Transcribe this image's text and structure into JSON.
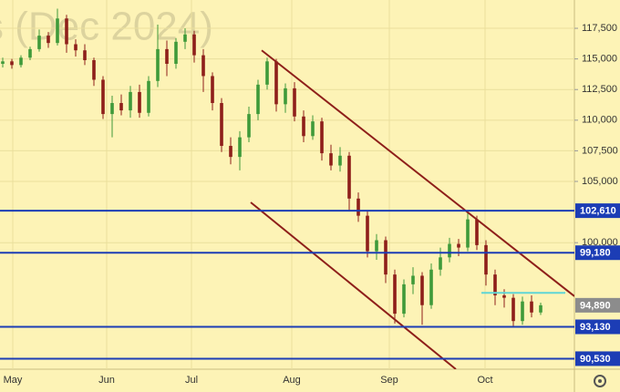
{
  "chart_data": {
    "type": "candlestick",
    "watermark": "s (Dec 2024)",
    "background": "#fdf3b6",
    "up_color": "#3f9a3a",
    "down_color": "#8e1f1a",
    "ylim": [
      89670,
      119810
    ],
    "yticks": [
      {
        "value": 117500,
        "label": "117,500"
      },
      {
        "value": 115000,
        "label": "115,000"
      },
      {
        "value": 112500,
        "label": "112,500"
      },
      {
        "value": 110000,
        "label": "110,000"
      },
      {
        "value": 107500,
        "label": "107,500"
      },
      {
        "value": 105000,
        "label": "105,000"
      },
      {
        "value": 100000,
        "label": "100,000"
      }
    ],
    "xlim": [
      -0.3,
      62.7
    ],
    "xticks": [
      {
        "value": 1.1,
        "label": "May"
      },
      {
        "value": 11.4,
        "label": "Jun"
      },
      {
        "value": 20.7,
        "label": "Jul"
      },
      {
        "value": 31.7,
        "label": "Aug"
      },
      {
        "value": 42.4,
        "label": "Sep"
      },
      {
        "value": 52.9,
        "label": "Oct"
      }
    ],
    "grid": true,
    "open": [
      114600,
      114800,
      114500,
      115100,
      115800,
      116900,
      116300,
      118300,
      116200,
      115700,
      114900,
      113300,
      110500,
      111400,
      110800,
      112300,
      110600,
      113200,
      115800,
      114600,
      116400,
      117000,
      115300,
      113600,
      111400,
      107900,
      107000,
      108600,
      110500,
      112900,
      114800,
      111300,
      112600,
      110300,
      108700,
      109900,
      107300,
      106300,
      107100,
      103600,
      102200,
      99300,
      100200,
      97400,
      94200,
      96600,
      97300,
      94900,
      97800,
      98800,
      99900,
      99600,
      101900,
      99800,
      97400,
      95700,
      95500,
      93600,
      95200,
      94300
    ],
    "high": [
      115100,
      115000,
      115300,
      116000,
      117400,
      117200,
      119100,
      118600,
      116600,
      116200,
      115100,
      113600,
      112000,
      112100,
      112800,
      112900,
      113600,
      117800,
      116500,
      116700,
      117500,
      117300,
      115800,
      113900,
      111800,
      108600,
      109100,
      111100,
      113300,
      115100,
      115000,
      113000,
      113100,
      110800,
      110400,
      110200,
      108000,
      107800,
      107400,
      104100,
      102600,
      100700,
      100500,
      97800,
      97000,
      98000,
      97600,
      98300,
      99600,
      100400,
      100300,
      102600,
      102200,
      100200,
      97800,
      96200,
      95800,
      95600,
      95700,
      95100
    ],
    "low": [
      114300,
      114200,
      114300,
      114900,
      115600,
      115900,
      116100,
      115500,
      115200,
      114500,
      112800,
      110100,
      108600,
      110400,
      110200,
      110200,
      110300,
      112700,
      113600,
      114200,
      115800,
      114700,
      112300,
      110800,
      107400,
      106400,
      105900,
      108200,
      110000,
      112500,
      110700,
      110600,
      109900,
      108200,
      108400,
      106700,
      105900,
      105800,
      102600,
      101700,
      98800,
      98600,
      96700,
      93400,
      93900,
      95800,
      93300,
      94600,
      97300,
      98400,
      98900,
      99300,
      99400,
      96500,
      94900,
      94700,
      93200,
      93300,
      93900,
      94100
    ],
    "close": [
      114800,
      114500,
      115100,
      115800,
      116900,
      116300,
      118300,
      116200,
      115700,
      114900,
      113300,
      110500,
      111400,
      110800,
      112300,
      110600,
      113200,
      115800,
      114600,
      116400,
      117000,
      115300,
      113600,
      111400,
      107900,
      107000,
      108600,
      110500,
      112900,
      114800,
      111300,
      112600,
      110300,
      108700,
      109900,
      107300,
      106300,
      107100,
      103600,
      102200,
      99300,
      100200,
      97400,
      94200,
      96600,
      97300,
      94900,
      97800,
      98800,
      99900,
      99600,
      101900,
      99800,
      97400,
      95700,
      95500,
      93600,
      95200,
      94300,
      94890
    ],
    "levels": [
      {
        "value": 102610,
        "label": "102,610",
        "color": "#1c3db5"
      },
      {
        "value": 99180,
        "label": "99,180",
        "color": "#1c3db5"
      },
      {
        "value": 93130,
        "label": "93,130",
        "color": "#1c3db5"
      },
      {
        "value": 90530,
        "label": "90,530",
        "color": "#1c3db5"
      }
    ],
    "last_price": {
      "value": 94890,
      "label": "94,890",
      "color": "#8c8c8c"
    },
    "resistance": {
      "value": 95900,
      "x": [
        52.5,
        61.7
      ],
      "color": "#5fd6d6"
    },
    "trend_lines": [
      {
        "x": [
          28.4,
          62.7
        ],
        "y": [
          115700,
          95630
        ],
        "color": "#8e1f1a"
      },
      {
        "x": [
          27.2,
          49.7
        ],
        "y": [
          103290,
          89670
        ],
        "color": "#8e1f1a"
      }
    ]
  }
}
